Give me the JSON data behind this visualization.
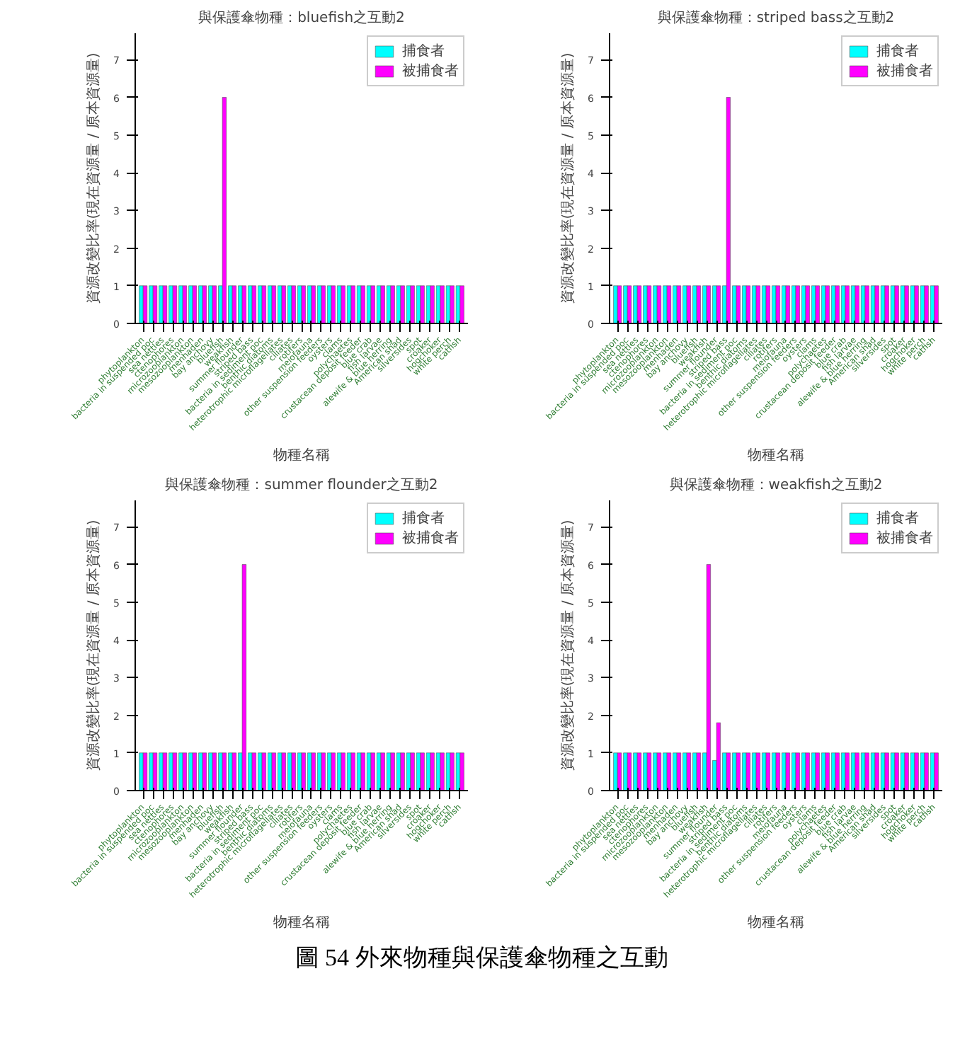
{
  "chart_data": [
    {
      "type": "bar",
      "title": "與保護傘物種：bluefish之互動2",
      "xlabel": "物種名稱",
      "ylabel": "資源改變比率(現在資源量 / 原本資源量)",
      "categories": [
        "phytoplankton",
        "bacteria in suspended poc",
        "sea nettles",
        "ctenophores",
        "microzooplankton",
        "mesozooplankton",
        "menhaden",
        "bay anchovy",
        "bluefish",
        "weakfish",
        "summer flounder",
        "striped bass",
        "bacteria in sediment poc",
        "benthic diatoms",
        "heterotrophic microflagellates",
        "ciliates",
        "rotifers",
        "meiofauna",
        "other suspension feeders",
        "oysters",
        "clams",
        "polychaetes",
        "crustacean deposit feeder",
        "blue crab",
        "fish larvae",
        "alewife & blue herring",
        "American shad",
        "silversides",
        "spot",
        "croaker",
        "hogchoker",
        "white perch",
        "catfish"
      ],
      "series": [
        {
          "name": "捕食者",
          "color": "#00ffff",
          "values": [
            1,
            1,
            1,
            1,
            1,
            1,
            1,
            1,
            1,
            1,
            1,
            1,
            1,
            1,
            1,
            1,
            1,
            1,
            1,
            1,
            1,
            1,
            1,
            1,
            1,
            1,
            1,
            1,
            1,
            1,
            1,
            1,
            1
          ]
        },
        {
          "name": "被捕食者",
          "color": "#ff00ff",
          "values": [
            1,
            1,
            1,
            1,
            1,
            1,
            1,
            1,
            6,
            1,
            1,
            1,
            1,
            1,
            1,
            1,
            1,
            1,
            1,
            1,
            1,
            1,
            1,
            1,
            1,
            1,
            1,
            1,
            1,
            1,
            1,
            1,
            1
          ]
        }
      ],
      "ylim": [
        0,
        7.7
      ],
      "yticks": [
        0,
        1,
        2,
        3,
        4,
        5,
        6,
        7
      ],
      "grid": false,
      "legend": "top right"
    },
    {
      "type": "bar",
      "title": "與保護傘物種：striped bass之互動2",
      "xlabel": "物種名稱",
      "ylabel": "資源改變比率(現在資源量 / 原本資源量)",
      "categories": [
        "phytoplankton",
        "bacteria in suspended poc",
        "sea nettles",
        "ctenophores",
        "microzooplankton",
        "mesozooplankton",
        "menhaden",
        "bay anchovy",
        "bluefish",
        "weakfish",
        "summer flounder",
        "striped bass",
        "bacteria in sediment poc",
        "benthic diatoms",
        "heterotrophic microflagellates",
        "ciliates",
        "rotifers",
        "meiofauna",
        "other suspension feeders",
        "oysters",
        "clams",
        "polychaetes",
        "crustacean deposit feeder",
        "blue crab",
        "fish larvae",
        "alewife & blue herring",
        "American shad",
        "silversides",
        "spot",
        "croaker",
        "hogchoker",
        "white perch",
        "catfish"
      ],
      "series": [
        {
          "name": "捕食者",
          "color": "#00ffff",
          "values": [
            1,
            1,
            1,
            1,
            1,
            1,
            1,
            1,
            1,
            1,
            1,
            1,
            1,
            1,
            1,
            1,
            1,
            1,
            1,
            1,
            1,
            1,
            1,
            1,
            1,
            1,
            1,
            1,
            1,
            1,
            1,
            1,
            1
          ]
        },
        {
          "name": "被捕食者",
          "color": "#ff00ff",
          "values": [
            1,
            1,
            1,
            1,
            1,
            1,
            1,
            1,
            1,
            1,
            1,
            6,
            1,
            1,
            1,
            1,
            1,
            1,
            1,
            1,
            1,
            1,
            1,
            1,
            1,
            1,
            1,
            1,
            1,
            1,
            1,
            1,
            1
          ]
        }
      ],
      "ylim": [
        0,
        7.7
      ],
      "yticks": [
        0,
        1,
        2,
        3,
        4,
        5,
        6,
        7
      ],
      "grid": false,
      "legend": "top right"
    },
    {
      "type": "bar",
      "title": "與保護傘物種：summer flounder之互動2",
      "xlabel": "物種名稱",
      "ylabel": "資源改變比率(現在資源量 / 原本資源量)",
      "categories": [
        "phytoplankton",
        "bacteria in suspended poc",
        "sea nettles",
        "ctenophores",
        "microzooplankton",
        "mesozooplankton",
        "menhaden",
        "bay anchovy",
        "bluefish",
        "weakfish",
        "summer flounder",
        "striped bass",
        "bacteria in sediment poc",
        "benthic diatoms",
        "heterotrophic microflagellates",
        "ciliates",
        "rotifers",
        "meiofauna",
        "other suspension feeders",
        "oysters",
        "clams",
        "polychaetes",
        "crustacean deposit feeder",
        "blue crab",
        "fish larvae",
        "alewife & blue herring",
        "American shad",
        "silversides",
        "spot",
        "croaker",
        "hogchoker",
        "white perch",
        "catfish"
      ],
      "series": [
        {
          "name": "捕食者",
          "color": "#00ffff",
          "values": [
            1,
            1,
            1,
            1,
            1,
            1,
            1,
            1,
            1,
            1,
            1,
            1,
            1,
            1,
            1,
            1,
            1,
            1,
            1,
            1,
            1,
            1,
            1,
            1,
            1,
            1,
            1,
            1,
            1,
            1,
            1,
            1,
            1
          ]
        },
        {
          "name": "被捕食者",
          "color": "#ff00ff",
          "values": [
            1,
            1,
            1,
            1,
            1,
            1,
            1,
            1,
            1,
            1,
            6,
            1,
            1,
            1,
            1,
            1,
            1,
            1,
            1,
            1,
            1,
            1,
            1,
            1,
            1,
            1,
            1,
            1,
            1,
            1,
            1,
            1,
            1
          ]
        }
      ],
      "ylim": [
        0,
        7.7
      ],
      "yticks": [
        0,
        1,
        2,
        3,
        4,
        5,
        6,
        7
      ],
      "grid": false,
      "legend": "top right"
    },
    {
      "type": "bar",
      "title": "與保護傘物種：weakfish之互動2",
      "xlabel": "物種名稱",
      "ylabel": "資源改變比率(現在資源量 / 原本資源量)",
      "categories": [
        "phytoplankton",
        "bacteria in suspended poc",
        "sea nettles",
        "ctenophores",
        "microzooplankton",
        "mesozooplankton",
        "menhaden",
        "bay anchovy",
        "bluefish",
        "weakfish",
        "summer flounder",
        "striped bass",
        "bacteria in sediment poc",
        "benthic diatoms",
        "heterotrophic microflagellates",
        "ciliates",
        "rotifers",
        "meiofauna",
        "other suspension feeders",
        "oysters",
        "clams",
        "polychaetes",
        "crustacean deposit feeder",
        "blue crab",
        "fish larvae",
        "alewife & blue herring",
        "American shad",
        "silversides",
        "spot",
        "croaker",
        "hogchoker",
        "white perch",
        "catfish"
      ],
      "series": [
        {
          "name": "捕食者",
          "color": "#00ffff",
          "values": [
            1,
            1,
            1,
            1,
            1,
            1,
            1,
            1,
            1,
            1,
            0.8,
            1,
            1,
            1,
            1,
            1,
            1,
            1,
            1,
            1,
            1,
            1,
            1,
            1,
            1,
            1,
            1,
            1,
            1,
            1,
            1,
            1,
            1
          ]
        },
        {
          "name": "被捕食者",
          "color": "#ff00ff",
          "values": [
            1,
            1,
            1,
            1,
            1,
            1,
            1,
            1,
            1,
            6,
            1.8,
            1,
            1,
            1,
            1,
            1,
            1,
            1,
            1,
            1,
            1,
            1,
            1,
            1,
            1,
            1,
            1,
            1,
            1,
            1,
            1,
            1,
            1
          ]
        }
      ],
      "ylim": [
        0,
        7.7
      ],
      "yticks": [
        0,
        1,
        2,
        3,
        4,
        5,
        6,
        7
      ],
      "grid": false,
      "legend": "top right",
      "annotations": [
        "圖 54 外來物種與保護傘物種之互動"
      ]
    }
  ]
}
